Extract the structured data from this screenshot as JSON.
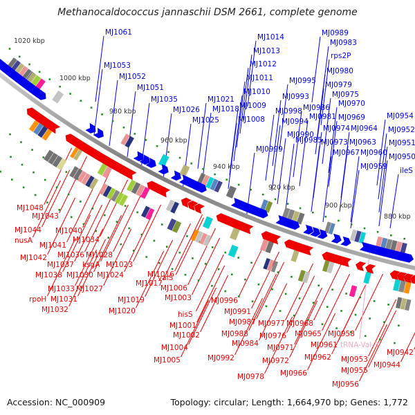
{
  "title": "Methanocaldococcus jannaschii DSM 2661, complete genome",
  "footer": {
    "accession": "Accession: NC_000909",
    "summary": "Topology: circular; Length: 1,664,970 bp; Genes: 1,772"
  },
  "colors": {
    "forward_strand": "#0000ee",
    "reverse_strand": "#ee0000",
    "trna": "#f4a6c8",
    "backbone": "#808080",
    "tick": "#228b22"
  },
  "ticks": [
    "1020 kbp",
    "1000 kbp",
    "980 kbp",
    "960 kbp",
    "940 kbp",
    "920 kbp",
    "900 kbp",
    "880 kbp"
  ],
  "forward_labels": [
    "MJ1061",
    "MJ1053",
    "MJ1052",
    "MJ1051",
    "MJ1035",
    "MJ1026",
    "MJ1025",
    "MJ1021",
    "MJ1018",
    "MJ1014",
    "MJ1013",
    "MJ1012",
    "MJ1011",
    "MJ1010",
    "MJ1009",
    "MJ1008",
    "MJ0999",
    "MJ0998",
    "MJ0995",
    "MJ0994",
    "MJ0993",
    "MJ0990",
    "MJ0989",
    "MJ0986",
    "MJ0985",
    "MJ0983",
    "rps2P",
    "MJ0981",
    "MJ0980",
    "MJ0979",
    "MJ0975",
    "MJ0974",
    "MJ0973",
    "MJ0970",
    "MJ0969",
    "MJ0967",
    "MJ0964",
    "MJ0963",
    "MJ0960",
    "MJ0959",
    "MJ0954",
    "MJ0952",
    "MJ0951",
    "MJ0950",
    "ileS"
  ],
  "reverse_labels": [
    "MJ1048",
    "MJ1043",
    "MJ1044",
    "nusA",
    "MJ1041",
    "MJ1040",
    "MJ1034",
    "MJ1042",
    "MJ1036",
    "MJ1028",
    "MJ1037",
    "ksgA",
    "MJ1023",
    "MJ1038",
    "MJ1030",
    "MJ1024",
    "MJ1033",
    "MJ1027",
    "rpoH",
    "MJ1031",
    "MJ1032",
    "MJ1019",
    "MJ1020",
    "MJ1017",
    "MJ1016",
    "valS",
    "MJ1006",
    "MJ1003",
    "hisS",
    "MJ1001",
    "MJ1002",
    "MJ1004",
    "MJ1005",
    "MJ0996",
    "MJ0991",
    "MJ0987",
    "MJ0988",
    "MJ0984",
    "MJ0992",
    "MJ0978",
    "MJ0977",
    "MJ0976",
    "MJ0971",
    "MJ0972",
    "MJ0968",
    "MJ0965",
    "MJ0966",
    "MJ0962",
    "MJ0961",
    "MJ0958",
    "MJ0953",
    "MJ0955",
    "MJ0956",
    "MJ0944",
    "MJ0942"
  ],
  "trna_labels": [
    "tRNA-Val-3"
  ]
}
